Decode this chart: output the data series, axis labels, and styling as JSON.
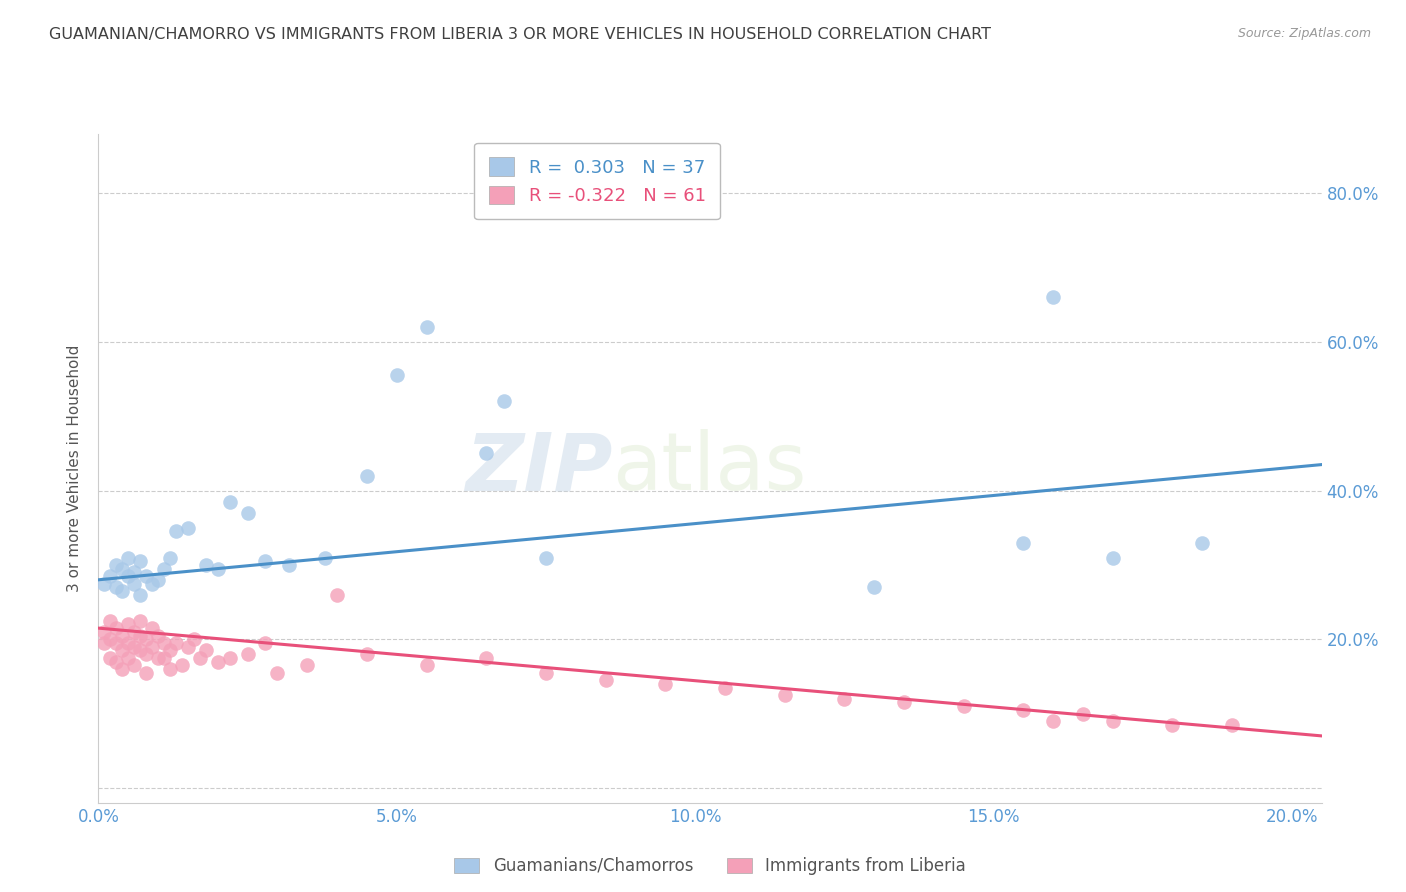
{
  "title": "GUAMANIAN/CHAMORRO VS IMMIGRANTS FROM LIBERIA 3 OR MORE VEHICLES IN HOUSEHOLD CORRELATION CHART",
  "source": "Source: ZipAtlas.com",
  "ylabel": "3 or more Vehicles in Household",
  "right_yticks": [
    0.0,
    0.2,
    0.4,
    0.6,
    0.8
  ],
  "right_yticklabels": [
    "",
    "20.0%",
    "40.0%",
    "60.0%",
    "80.0%"
  ],
  "xlim": [
    0.0,
    0.205
  ],
  "ylim": [
    -0.02,
    0.88
  ],
  "xticks": [
    0.0,
    0.05,
    0.1,
    0.15,
    0.2
  ],
  "xticklabels": [
    "0.0%",
    "5.0%",
    "10.0%",
    "15.0%",
    "20.0%"
  ],
  "blue_color": "#A8C8E8",
  "pink_color": "#F4A0B8",
  "blue_line_color": "#4A90C8",
  "pink_line_color": "#E8507A",
  "legend_blue_R": "0.303",
  "legend_blue_N": "37",
  "legend_pink_R": "-0.322",
  "legend_pink_N": "61",
  "legend_label_blue": "Guamanians/Chamorros",
  "legend_label_pink": "Immigrants from Liberia",
  "watermark_zip": "ZIP",
  "watermark_atlas": "atlas",
  "blue_scatter_x": [
    0.001,
    0.002,
    0.003,
    0.003,
    0.004,
    0.004,
    0.005,
    0.005,
    0.006,
    0.006,
    0.007,
    0.007,
    0.008,
    0.009,
    0.01,
    0.011,
    0.012,
    0.013,
    0.015,
    0.018,
    0.02,
    0.022,
    0.025,
    0.028,
    0.032,
    0.038,
    0.045,
    0.05,
    0.055,
    0.065,
    0.068,
    0.075,
    0.13,
    0.155,
    0.16,
    0.17,
    0.185
  ],
  "blue_scatter_y": [
    0.275,
    0.285,
    0.3,
    0.27,
    0.295,
    0.265,
    0.285,
    0.31,
    0.275,
    0.29,
    0.305,
    0.26,
    0.285,
    0.275,
    0.28,
    0.295,
    0.31,
    0.345,
    0.35,
    0.3,
    0.295,
    0.385,
    0.37,
    0.305,
    0.3,
    0.31,
    0.42,
    0.555,
    0.62,
    0.45,
    0.52,
    0.31,
    0.27,
    0.33,
    0.66,
    0.31,
    0.33
  ],
  "pink_scatter_x": [
    0.001,
    0.001,
    0.002,
    0.002,
    0.002,
    0.003,
    0.003,
    0.003,
    0.004,
    0.004,
    0.004,
    0.005,
    0.005,
    0.005,
    0.006,
    0.006,
    0.006,
    0.007,
    0.007,
    0.007,
    0.008,
    0.008,
    0.008,
    0.009,
    0.009,
    0.01,
    0.01,
    0.011,
    0.011,
    0.012,
    0.012,
    0.013,
    0.014,
    0.015,
    0.016,
    0.017,
    0.018,
    0.02,
    0.022,
    0.025,
    0.028,
    0.03,
    0.035,
    0.04,
    0.045,
    0.055,
    0.065,
    0.075,
    0.085,
    0.095,
    0.105,
    0.115,
    0.125,
    0.135,
    0.145,
    0.155,
    0.16,
    0.165,
    0.17,
    0.18,
    0.19
  ],
  "pink_scatter_y": [
    0.21,
    0.195,
    0.225,
    0.2,
    0.175,
    0.215,
    0.195,
    0.17,
    0.205,
    0.185,
    0.16,
    0.22,
    0.195,
    0.175,
    0.21,
    0.19,
    0.165,
    0.205,
    0.185,
    0.225,
    0.2,
    0.18,
    0.155,
    0.215,
    0.19,
    0.175,
    0.205,
    0.195,
    0.175,
    0.185,
    0.16,
    0.195,
    0.165,
    0.19,
    0.2,
    0.175,
    0.185,
    0.17,
    0.175,
    0.18,
    0.195,
    0.155,
    0.165,
    0.26,
    0.18,
    0.165,
    0.175,
    0.155,
    0.145,
    0.14,
    0.135,
    0.125,
    0.12,
    0.115,
    0.11,
    0.105,
    0.09,
    0.1,
    0.09,
    0.085,
    0.085
  ],
  "blue_trend_x": [
    0.0,
    0.205
  ],
  "blue_trend_y": [
    0.28,
    0.435
  ],
  "pink_trend_x": [
    0.0,
    0.205
  ],
  "pink_trend_y": [
    0.215,
    0.07
  ],
  "background_color": "#FFFFFF",
  "grid_color": "#CCCCCC",
  "title_color": "#404040",
  "axis_color": "#5B9BD5",
  "right_axis_color": "#5B9BD5"
}
